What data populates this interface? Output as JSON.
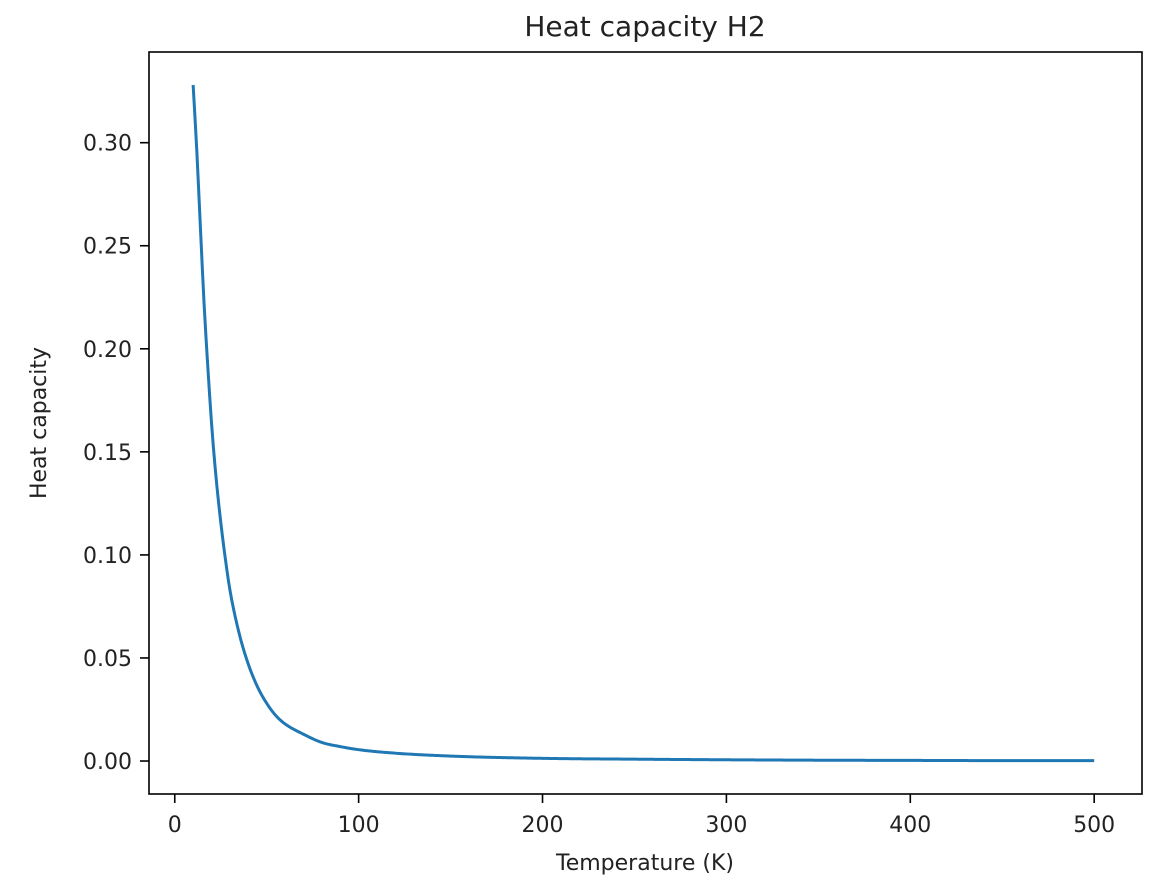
{
  "chart_data": {
    "type": "line",
    "title": "Heat capacity H2",
    "xlabel": "Temperature (K)",
    "ylabel": "Heat capacity",
    "xlim": [
      -14,
      526
    ],
    "ylim": [
      -0.016,
      0.344
    ],
    "xticks": [
      0,
      100,
      200,
      300,
      400,
      500
    ],
    "xtick_labels": [
      "0",
      "100",
      "200",
      "300",
      "400",
      "500"
    ],
    "yticks": [
      0.0,
      0.05,
      0.1,
      0.15,
      0.2,
      0.25,
      0.3
    ],
    "ytick_labels": [
      "0.00",
      "0.05",
      "0.10",
      "0.15",
      "0.20",
      "0.25",
      "0.30"
    ],
    "grid": false,
    "series": [
      {
        "color": "#1f77b4",
        "x": [
          10,
          12,
          14,
          16,
          18,
          20,
          22,
          25,
          28,
          30,
          35,
          40,
          45,
          50,
          55,
          60,
          70,
          80,
          90,
          100,
          120,
          150,
          200,
          250,
          300,
          350,
          400,
          450,
          500
        ],
        "y": [
          0.328,
          0.296,
          0.258,
          0.221,
          0.191,
          0.164,
          0.142,
          0.116,
          0.095,
          0.083,
          0.062,
          0.047,
          0.036,
          0.028,
          0.022,
          0.018,
          0.013,
          0.009,
          0.007,
          0.0055,
          0.0038,
          0.0024,
          0.0013,
          0.0009,
          0.0006,
          0.0004,
          0.0003,
          0.0002,
          0.0002
        ]
      }
    ]
  }
}
